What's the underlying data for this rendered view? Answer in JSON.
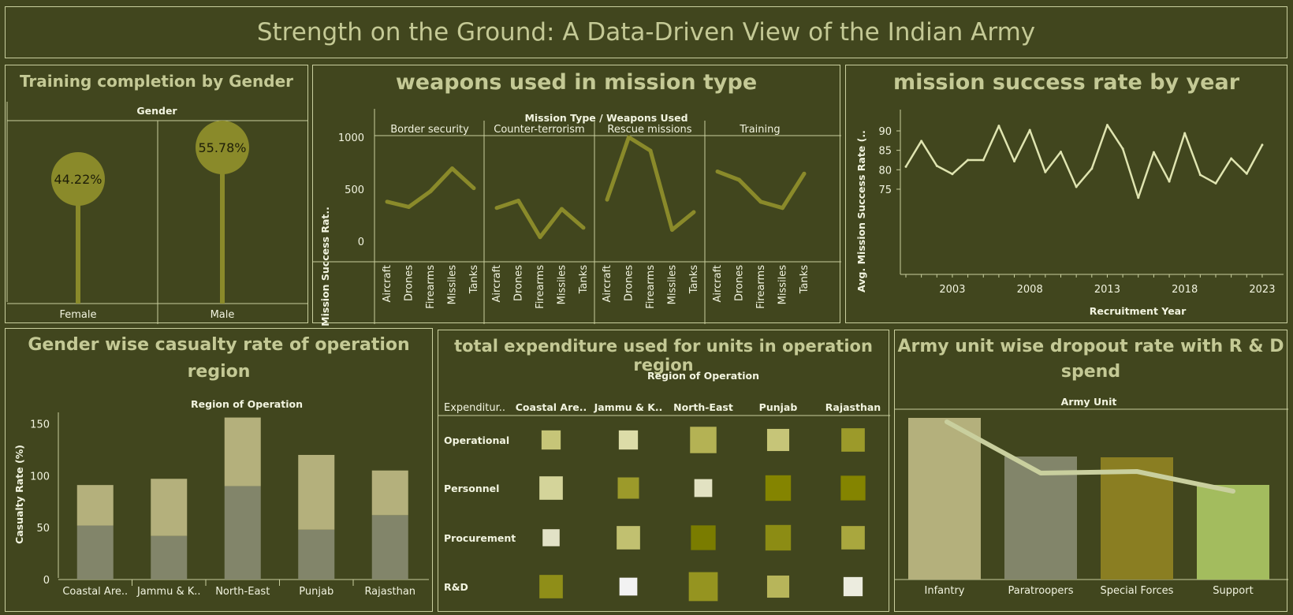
{
  "dashboard_title": "Strength on the Ground: A Data-Driven View of the Indian Army",
  "colors": {
    "background": "#41461e",
    "title": "#c4c995",
    "lollipop": "#8a8a2a",
    "weapons_line": "#8a8a2a",
    "year_line": "#dfe4b0",
    "female_bar": "#82856a",
    "male_bar": "#b4b07c"
  },
  "charts": {
    "gender": {
      "title": "Training completion by Gender",
      "header": "Gender"
    },
    "weapons": {
      "title": "weapons used in mission type",
      "header": "Mission Type  /  Weapons Used",
      "ylabel": "Mission Success Rat.."
    },
    "year": {
      "title": "mission success rate by year",
      "ylabel": "Avg. Mission Success Rate (..",
      "xlabel": "Recruitment Year"
    },
    "casualty": {
      "title_line1": "Gender wise casualty rate of operation",
      "title_line2": "region",
      "header": "Region of Operation",
      "ylabel": "Casualty Rate (%)"
    },
    "expenditure": {
      "title": "total expenditure used for units in operation region",
      "header": "Region of Operation",
      "corner_label": "Expenditur.."
    },
    "dropout": {
      "title_line1": "Army unit wise dropout rate with R & D",
      "title_line2": "spend",
      "header": "Army Unit"
    }
  },
  "chart_data": [
    {
      "id": "gender",
      "type": "lollipop",
      "categories": [
        "Female",
        "Male"
      ],
      "values": [
        44.22,
        55.78
      ],
      "labels": [
        "44.22%",
        "55.78%"
      ]
    },
    {
      "id": "weapons",
      "type": "line",
      "groups": [
        "Border security",
        "Counter-terrorism",
        "Rescue missions",
        "Training"
      ],
      "categories": [
        "Aircraft",
        "Drones",
        "Firearms",
        "Missiles",
        "Tanks"
      ],
      "series": [
        {
          "group": "Border security",
          "values": [
            380,
            330,
            480,
            700,
            510
          ]
        },
        {
          "group": "Counter-terrorism",
          "values": [
            320,
            390,
            40,
            310,
            130
          ]
        },
        {
          "group": "Rescue missions",
          "values": [
            400,
            1000,
            870,
            110,
            280
          ]
        },
        {
          "group": "Training",
          "values": [
            670,
            590,
            380,
            320,
            650
          ]
        }
      ],
      "yticks": [
        "1000",
        "500",
        "0"
      ],
      "ylim": [
        0,
        1000
      ]
    },
    {
      "id": "year",
      "type": "line",
      "x": [
        2000,
        2001,
        2002,
        2003,
        2004,
        2005,
        2006,
        2007,
        2008,
        2009,
        2010,
        2011,
        2012,
        2013,
        2014,
        2015,
        2016,
        2017,
        2018,
        2019,
        2020,
        2021,
        2022,
        2023
      ],
      "y": [
        80.8,
        87.4,
        81.0,
        78.9,
        82.5,
        82.5,
        91.3,
        82.2,
        90.2,
        79.4,
        84.6,
        75.6,
        80.3,
        91.5,
        85.4,
        72.8,
        84.5,
        77.0,
        89.4,
        78.7,
        76.5,
        82.9,
        79.0,
        86.4
      ],
      "xticks": [
        "2003",
        "2008",
        "2013",
        "2018",
        "2023"
      ],
      "yticks": [
        "90",
        "85",
        "80",
        "75"
      ],
      "ylim": [
        72,
        93
      ]
    },
    {
      "id": "casualty",
      "type": "bar",
      "stacked": true,
      "categories": [
        "Coastal Are..",
        "Jammu & K..",
        "North-East",
        "Punjab",
        "Rajasthan"
      ],
      "series": [
        {
          "values": [
            52,
            42,
            90,
            48,
            62
          ]
        },
        {
          "values": [
            39,
            55,
            66,
            72,
            43
          ]
        }
      ],
      "yticks": [
        "150",
        "100",
        "50",
        "0"
      ],
      "ylim": [
        0,
        160
      ]
    },
    {
      "id": "expenditure",
      "type": "heatmap",
      "columns": [
        "Coastal Are..",
        "Jammu & K..",
        "North-East",
        "Punjab",
        "Rajasthan"
      ],
      "rows": [
        "Operational",
        "Personnel",
        "Procurement",
        "R&D"
      ],
      "values": [
        [
          0.45,
          0.45,
          0.62,
          0.52,
          0.55
        ],
        [
          0.55,
          0.5,
          0.42,
          0.6,
          0.58
        ],
        [
          0.4,
          0.55,
          0.58,
          0.6,
          0.55
        ],
        [
          0.55,
          0.42,
          0.68,
          0.52,
          0.45
        ]
      ],
      "colors": [
        [
          "#c6c578",
          "#dcdca8",
          "#b4b254",
          "#c6c578",
          "#9c9a2a"
        ],
        [
          "#d4d49a",
          "#9c9a2a",
          "#e2e2c2",
          "#848400",
          "#848400"
        ],
        [
          "#e2e2c6",
          "#c1c070",
          "#7a7c00",
          "#8c8c14",
          "#a9a73e"
        ],
        [
          "#8f8e18",
          "#f2f2f2",
          "#959420",
          "#b7b55a",
          "#ececdf"
        ]
      ]
    },
    {
      "id": "dropout",
      "type": "bar+line",
      "categories": [
        "Infantry",
        "Paratroopers",
        "Special Forces",
        "Support"
      ],
      "bar_values": [
        205,
        156,
        155,
        120
      ],
      "line_values": [
        200,
        135,
        137,
        112
      ],
      "bar_colors": [
        "#b4b07c",
        "#82856a",
        "#8a7e22",
        "#a3bc5e"
      ],
      "line_color": "#c9cf9e"
    }
  ]
}
